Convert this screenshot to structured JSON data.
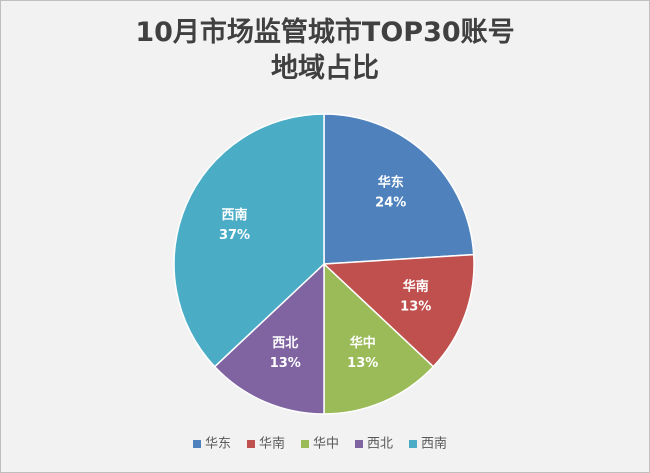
{
  "chart_data": {
    "type": "pie",
    "title": "10月市场监管城市TOP30账号\n地域占比",
    "categories": [
      "华东",
      "华南",
      "华中",
      "西北",
      "西南"
    ],
    "values": [
      24,
      13,
      13,
      13,
      37
    ],
    "value_labels": [
      "24%",
      "13%",
      "13%",
      "13%",
      "37%"
    ],
    "colors": [
      "#4f81bd",
      "#c0504d",
      "#9bbb59",
      "#8064a2",
      "#4bacc6"
    ],
    "legend": "bottom"
  }
}
